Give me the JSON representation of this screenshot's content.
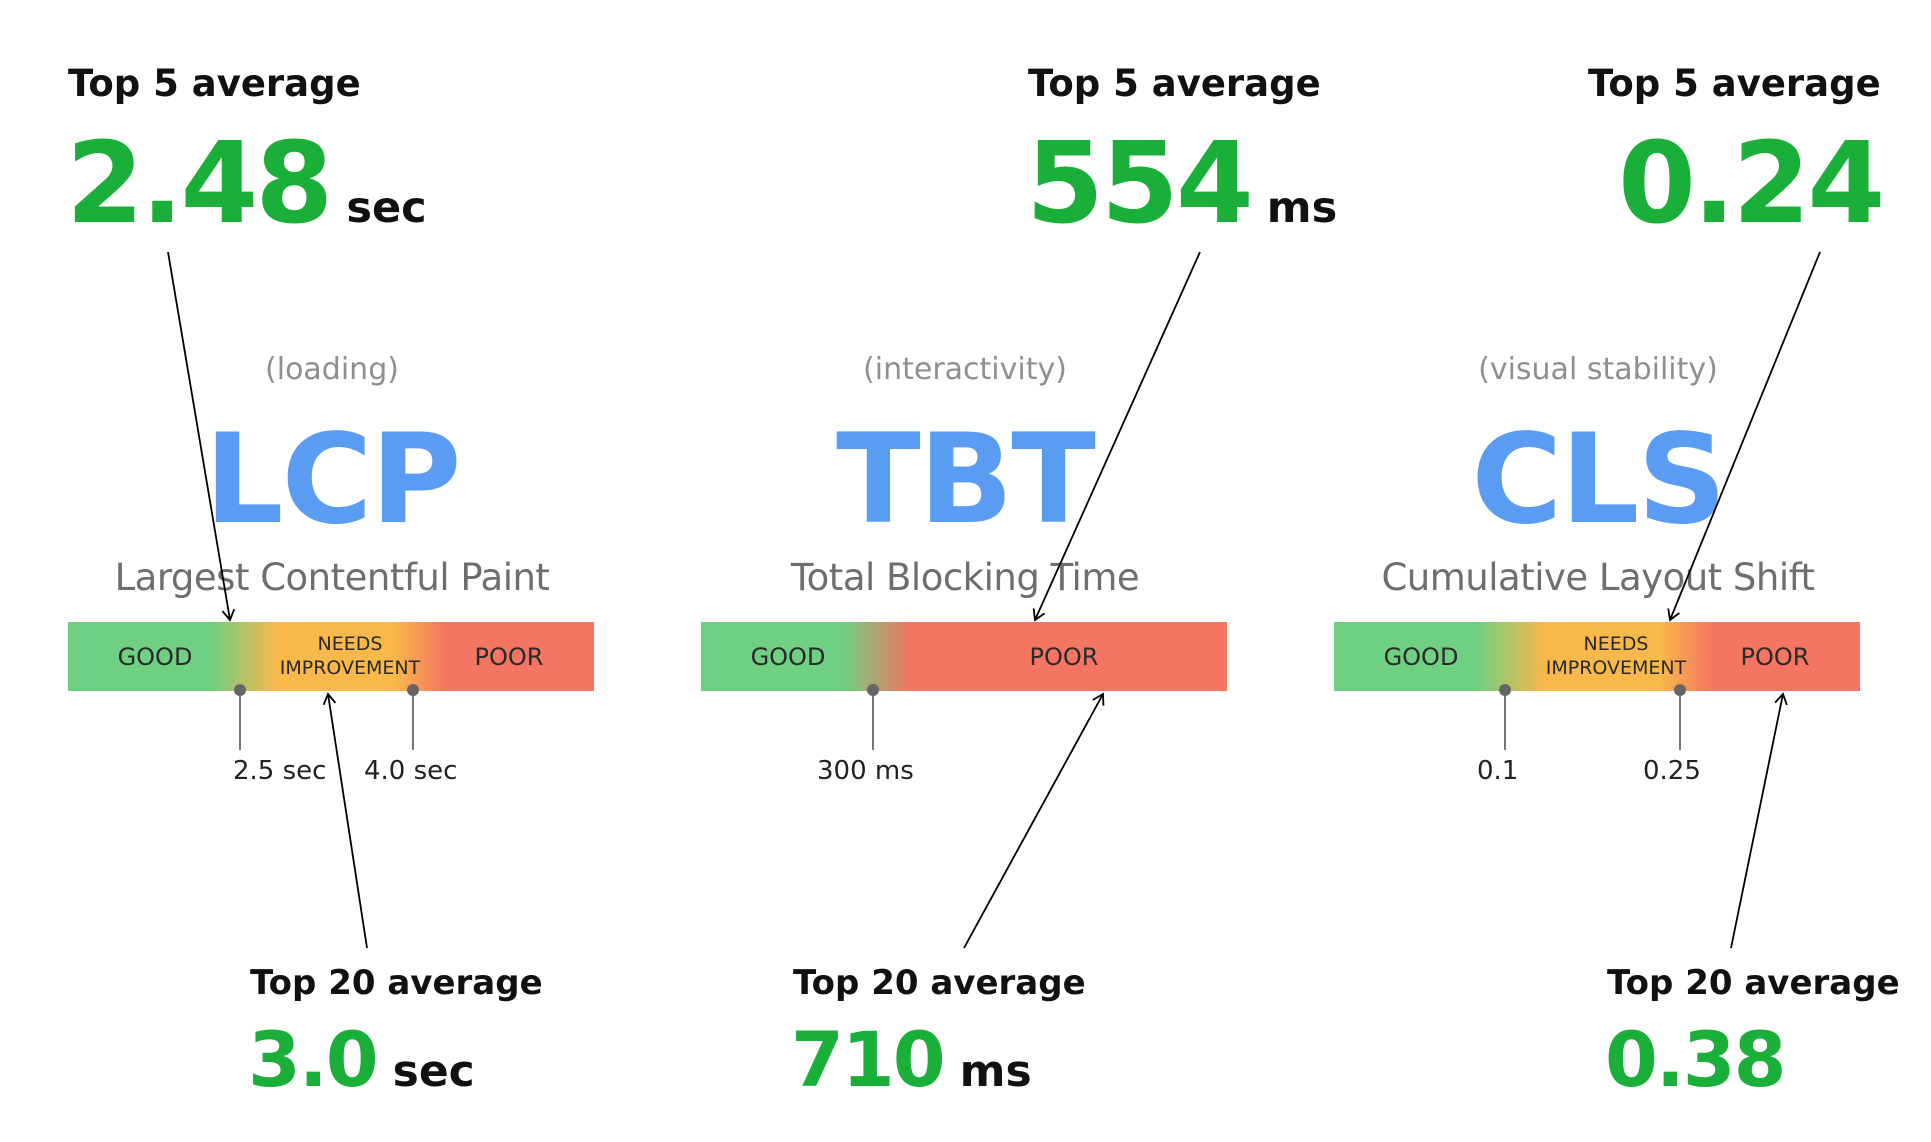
{
  "metrics": [
    {
      "category": "(loading)",
      "abbr": "LCP",
      "name": "Largest Contentful Paint",
      "top5": {
        "label": "Top 5 average",
        "value": "2.48",
        "unit": "sec"
      },
      "top20": {
        "label": "Top 20 average",
        "value": "3.0",
        "unit": "sec"
      },
      "segments": [
        "GOOD",
        "NEEDS IMPROVEMENT",
        "POOR"
      ],
      "thresholds": [
        "2.5 sec",
        "4.0 sec"
      ]
    },
    {
      "category": "(interactivity)",
      "abbr": "TBT",
      "name": "Total Blocking Time",
      "top5": {
        "label": "Top 5 average",
        "value": "554",
        "unit": "ms"
      },
      "top20": {
        "label": "Top 20 average",
        "value": "710",
        "unit": "ms"
      },
      "segments": [
        "GOOD",
        "POOR"
      ],
      "thresholds": [
        "300 ms"
      ]
    },
    {
      "category": "(visual stability)",
      "abbr": "CLS",
      "name": "Cumulative Layout Shift",
      "top5": {
        "label": "Top 5 average",
        "value": "0.24",
        "unit": ""
      },
      "top20": {
        "label": "Top 20 average",
        "value": "0.38",
        "unit": ""
      },
      "segments": [
        "GOOD",
        "NEEDS IMPROVEMENT",
        "POOR"
      ],
      "thresholds": [
        "0.1",
        "0.25"
      ]
    }
  ],
  "colors": {
    "good": "#6fcf83",
    "needs": "#f9b84a",
    "poor": "#f47562",
    "value_green": "#1aaf39",
    "abbr_blue": "#5b9cf3"
  }
}
